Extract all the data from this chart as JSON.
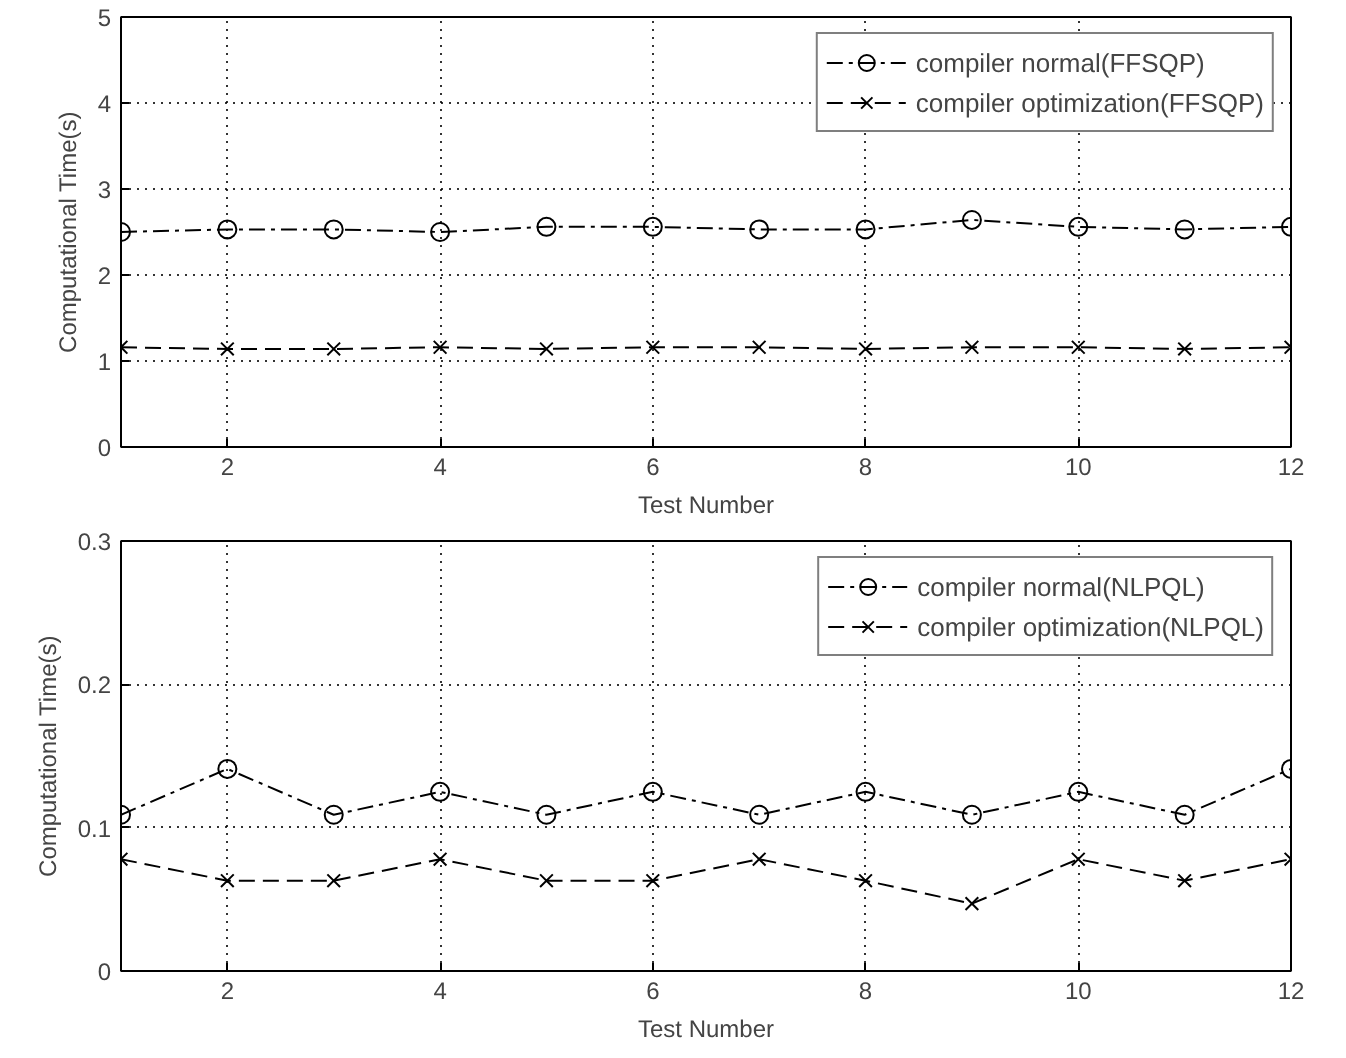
{
  "chart_data": [
    {
      "type": "line",
      "xlabel": "Test Number",
      "ylabel": "Computational Time(s)",
      "x": [
        1,
        2,
        3,
        4,
        5,
        6,
        7,
        8,
        9,
        10,
        11,
        12
      ],
      "xlim": [
        1,
        12
      ],
      "xticks": [
        2,
        4,
        6,
        8,
        10,
        12
      ],
      "ylim": [
        0,
        5
      ],
      "yticks": [
        0,
        1,
        2,
        3,
        4,
        5
      ],
      "grid": true,
      "legend": "top right",
      "series": [
        {
          "name": "compiler normal(FFSQP)",
          "color": "#000000",
          "marker": "circle",
          "line_style": "dashdot",
          "values": [
            2.5,
            2.53,
            2.53,
            2.5,
            2.56,
            2.56,
            2.53,
            2.53,
            2.64,
            2.56,
            2.53,
            2.56
          ]
        },
        {
          "name": "compiler optimization(FFSQP)",
          "color": "#000000",
          "marker": "cross",
          "line_style": "dashed",
          "values": [
            1.16,
            1.14,
            1.14,
            1.16,
            1.14,
            1.16,
            1.16,
            1.14,
            1.16,
            1.16,
            1.14,
            1.16
          ]
        }
      ]
    },
    {
      "type": "line",
      "xlabel": "Test Number",
      "ylabel": "Computational Time(s)",
      "x": [
        1,
        2,
        3,
        4,
        5,
        6,
        7,
        8,
        9,
        10,
        11,
        12
      ],
      "xlim": [
        1,
        12
      ],
      "xticks": [
        2,
        4,
        6,
        8,
        10,
        12
      ],
      "ylim": [
        0,
        0.3
      ],
      "yticks": [
        0,
        0.1,
        0.2,
        0.3
      ],
      "grid": true,
      "legend": "top right",
      "series": [
        {
          "name": "compiler normal(NLPQL)",
          "color": "#000000",
          "marker": "circle",
          "line_style": "dashdot",
          "values": [
            0.109,
            0.141,
            0.109,
            0.125,
            0.109,
            0.125,
            0.109,
            0.125,
            0.109,
            0.125,
            0.109,
            0.141
          ]
        },
        {
          "name": "compiler optimization(NLPQL)",
          "color": "#000000",
          "marker": "cross",
          "line_style": "dashed",
          "values": [
            0.078,
            0.063,
            0.063,
            0.078,
            0.063,
            0.063,
            0.078,
            0.063,
            0.047,
            0.078,
            0.063,
            0.078
          ]
        }
      ]
    }
  ]
}
